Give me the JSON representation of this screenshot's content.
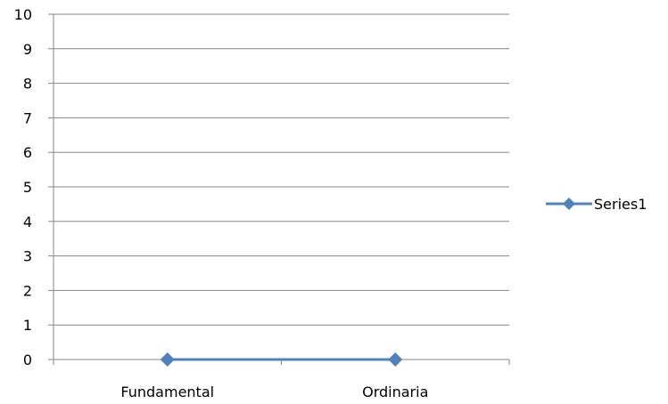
{
  "chart_data": {
    "type": "line",
    "title": "",
    "xlabel": "",
    "ylabel": "",
    "categories": [
      "Fundamental",
      "Ordinaria"
    ],
    "ylim": [
      0,
      10
    ],
    "y_ticks": [
      "0",
      "1",
      "2",
      "3",
      "4",
      "5",
      "6",
      "7",
      "8",
      "9",
      "10"
    ],
    "series": [
      {
        "name": "Series1",
        "values": [
          0,
          0
        ],
        "color": "#4F81BD",
        "marker": "diamond"
      }
    ],
    "grid": "horizontal",
    "legend_position": "right",
    "colors": {
      "gridline": "#868686",
      "axis": "#868686",
      "text": "#000000"
    }
  }
}
